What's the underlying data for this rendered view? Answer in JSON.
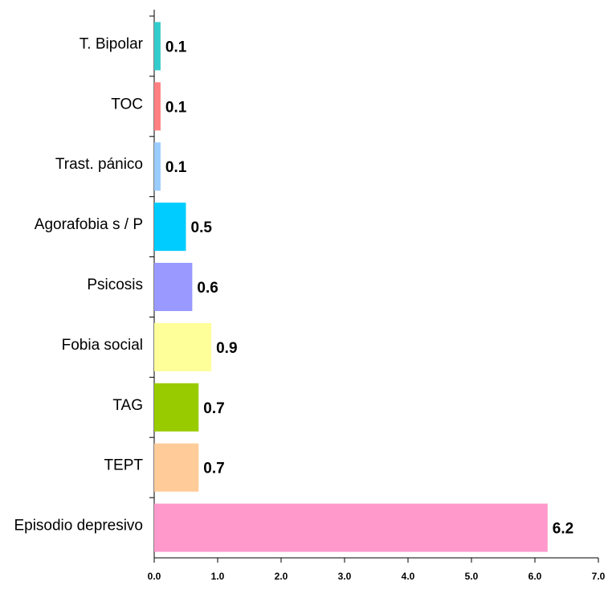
{
  "chart_data": {
    "type": "barh",
    "categories": [
      "T. Bipolar",
      "TOC",
      "Trast. pánico",
      "Agorafobia s / P",
      "Psicosis",
      "Fobia social",
      "TAG",
      "TEPT",
      "Episodio depresivo"
    ],
    "values": [
      0.1,
      0.1,
      0.1,
      0.5,
      0.6,
      0.9,
      0.7,
      0.7,
      6.2
    ],
    "colors": [
      "#33cccc",
      "#ff8080",
      "#99ccff",
      "#00ccff",
      "#9999ff",
      "#ffff99",
      "#99cc00",
      "#ffcc99",
      "#ff99cc"
    ],
    "xlim": [
      0,
      7
    ],
    "xticks": [
      {
        "value": 0,
        "label": "0.0"
      },
      {
        "value": 1,
        "label": "1.0"
      },
      {
        "value": 2,
        "label": "2.0"
      },
      {
        "value": 3,
        "label": "3.0"
      },
      {
        "value": 4,
        "label": "4.0"
      },
      {
        "value": 5,
        "label": "5.0"
      },
      {
        "value": 6,
        "label": "6.0"
      },
      {
        "value": 7,
        "label": "7.0"
      }
    ]
  }
}
